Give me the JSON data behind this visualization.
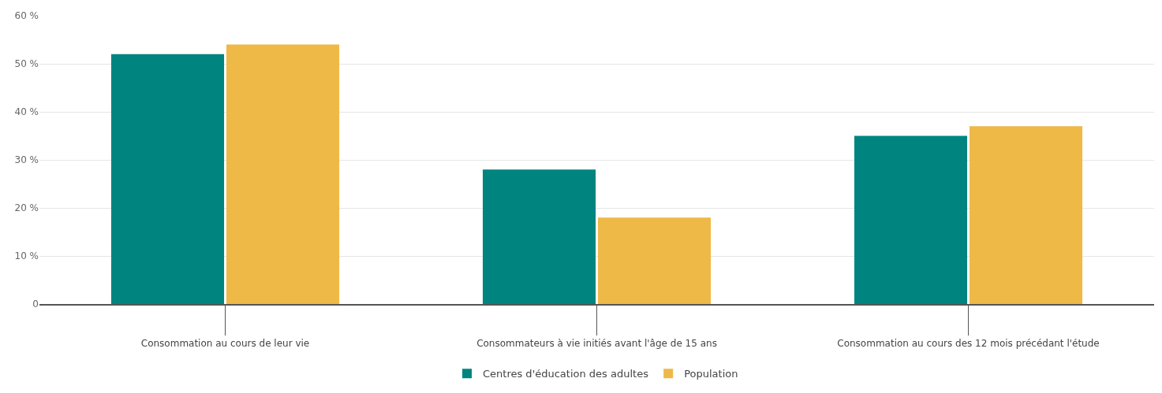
{
  "chart_data": {
    "type": "bar",
    "categories": [
      "Consommation au cours de leur vie",
      "Consommateurs à vie initiés avant l'âge de 15 ans",
      "Consommation au cours des 12 mois précédant l'étude"
    ],
    "series": [
      {
        "name": "Centres d'éducation des adultes",
        "color": "#008480",
        "values": [
          52,
          28,
          35
        ]
      },
      {
        "name": "Population",
        "color": "#eeb947",
        "values": [
          54,
          18,
          37
        ]
      }
    ],
    "ylim": [
      0,
      60
    ],
    "yticks": [
      {
        "value": 0,
        "label": "0"
      },
      {
        "value": 10,
        "label": "10 %"
      },
      {
        "value": 20,
        "label": "20 %"
      },
      {
        "value": 30,
        "label": "30 %"
      },
      {
        "value": 40,
        "label": "40 %"
      },
      {
        "value": 50,
        "label": "50 %"
      },
      {
        "value": 60,
        "label": "60 %"
      }
    ],
    "grid": "y",
    "legend": "bottom"
  }
}
